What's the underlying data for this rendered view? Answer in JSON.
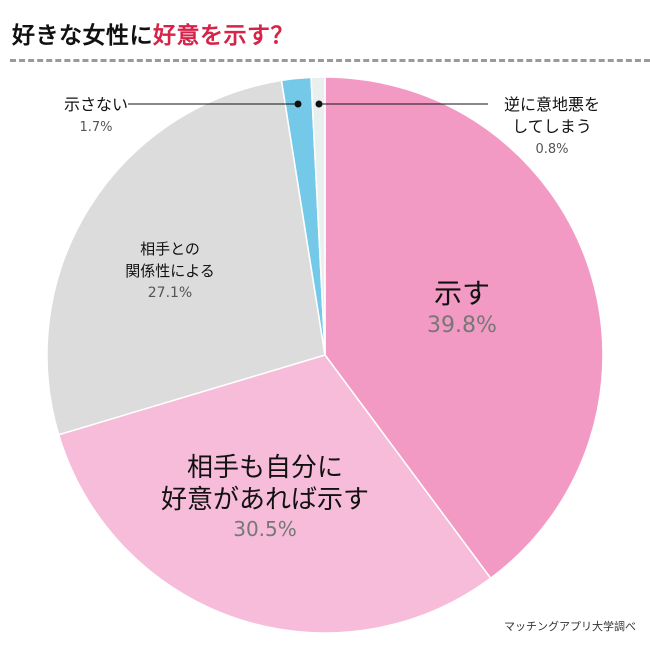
{
  "title": {
    "main": "好きな女性に",
    "highlight": "好意を示す？",
    "highlight_color": "#d6234a"
  },
  "source": "マッチングアプリ大学調べ",
  "chart_data": {
    "type": "pie",
    "title": "好きな女性に好意を示す？",
    "start": "top",
    "direction": "clockwise",
    "slices": [
      {
        "label_lines": [
          "示す"
        ],
        "value": 39.8,
        "value_label": "39.8%",
        "color": "#f29ac4"
      },
      {
        "label_lines": [
          "相手も自分に",
          "好意があれば示す"
        ],
        "value": 30.5,
        "value_label": "30.5%",
        "color": "#f6bcd9"
      },
      {
        "label_lines": [
          "相手との",
          "関係性による"
        ],
        "value": 27.1,
        "value_label": "27.1%",
        "color": "#dcdcdc"
      },
      {
        "label_lines": [
          "示さない"
        ],
        "value": 1.7,
        "value_label": "1.7%",
        "color": "#74c9e9"
      },
      {
        "label_lines": [
          "逆に意地悪を",
          "してしまう"
        ],
        "value": 0.8,
        "value_label": "0.8%",
        "color": "#e9eeef"
      }
    ]
  }
}
